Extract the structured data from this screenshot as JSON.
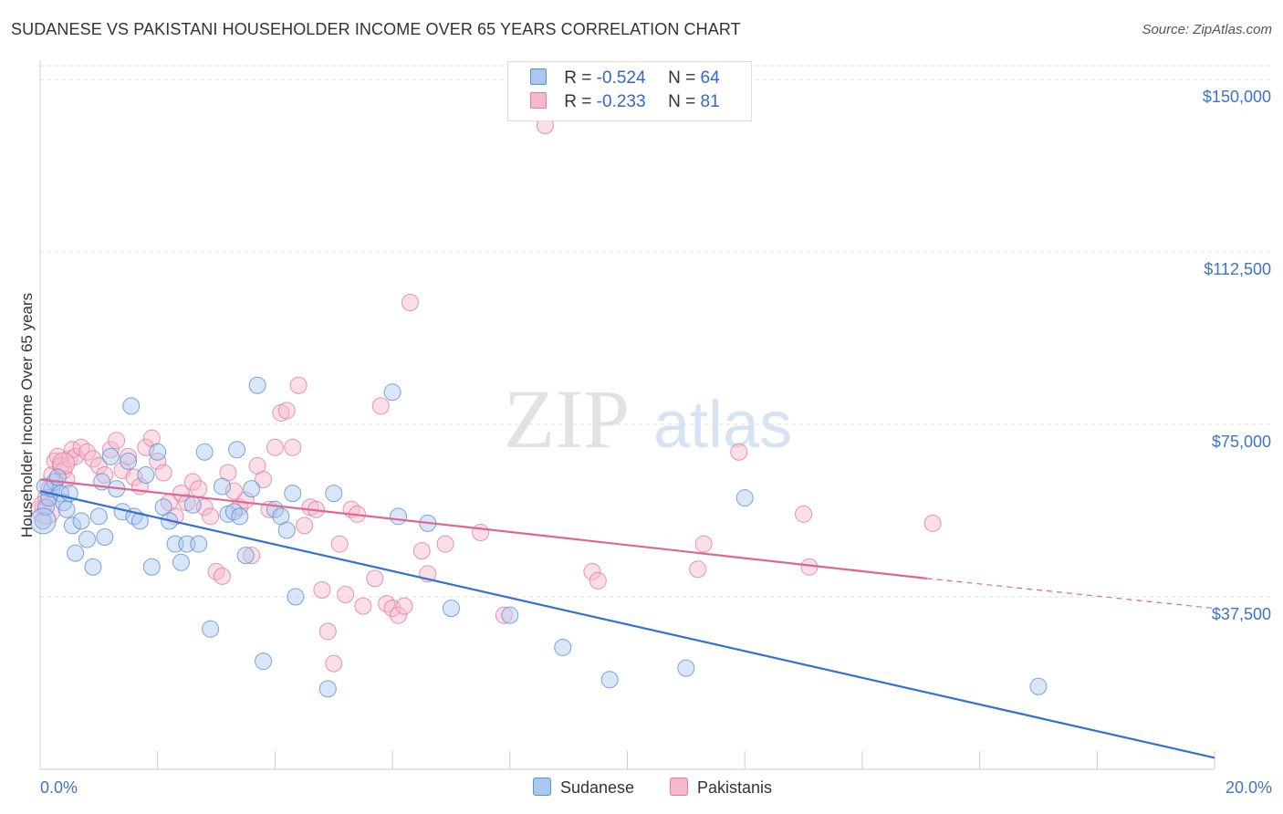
{
  "header": {
    "title": "SUDANESE VS PAKISTANI HOUSEHOLDER INCOME OVER 65 YEARS CORRELATION CHART",
    "source": "Source: ZipAtlas.com"
  },
  "watermark": {
    "zip": "ZIP",
    "atlas": "atlas"
  },
  "legend": {
    "rows": [
      {
        "r_label": "R =",
        "r_value": "-0.524",
        "n_label": "N =",
        "n_value": "64"
      },
      {
        "r_label": "R =",
        "r_value": "-0.233",
        "n_label": "N =",
        "n_value": "81"
      }
    ]
  },
  "bottom_legend": {
    "series1": "Sudanese",
    "series2": "Pakistanis"
  },
  "colors": {
    "sudanese_fill": "#aac8ef",
    "sudanese_stroke": "#5b8fd6",
    "sudanese_line": "#3471d1",
    "pakistani_fill": "#f6b8cb",
    "pakistani_stroke": "#e07c9c",
    "pakistani_line": "#e06690",
    "axis_label": "#3c74c9",
    "grid": "#dddddd"
  },
  "chart_data": {
    "type": "scatter",
    "title": "SUDANESE VS PAKISTANI HOUSEHOLDER INCOME OVER 65 YEARS CORRELATION CHART",
    "xlabel": "",
    "ylabel": "Householder Income Over 65 years",
    "xlim": [
      0,
      20
    ],
    "ylim": [
      0,
      153000
    ],
    "x_tick_labels": [
      "0.0%",
      "20.0%"
    ],
    "y_ticks": [
      37500,
      75000,
      112500,
      150000
    ],
    "y_tick_labels": [
      "$37,500",
      "$75,000",
      "$112,500",
      "$150,000"
    ],
    "grid": true,
    "legend_position": "top-center",
    "series": [
      {
        "name": "Sudanese",
        "r": -0.524,
        "n": 64,
        "trend": {
          "x": [
            0,
            20
          ],
          "y": [
            60500,
            2500
          ]
        },
        "points": [
          [
            0.05,
            54000
          ],
          [
            0.1,
            57000
          ],
          [
            0.15,
            59000
          ],
          [
            0.2,
            61000
          ],
          [
            0.25,
            62500
          ],
          [
            0.3,
            63500
          ],
          [
            0.35,
            60000
          ],
          [
            0.4,
            58000
          ],
          [
            0.45,
            56500
          ],
          [
            0.5,
            60000
          ],
          [
            0.55,
            53000
          ],
          [
            0.6,
            47000
          ],
          [
            0.7,
            54000
          ],
          [
            0.8,
            50000
          ],
          [
            0.9,
            44000
          ],
          [
            1.0,
            55000
          ],
          [
            1.1,
            50500
          ],
          [
            1.2,
            68000
          ],
          [
            1.3,
            61000
          ],
          [
            1.4,
            56000
          ],
          [
            1.5,
            67000
          ],
          [
            1.55,
            79000
          ],
          [
            1.6,
            55000
          ],
          [
            1.7,
            54000
          ],
          [
            1.8,
            64000
          ],
          [
            1.9,
            44000
          ],
          [
            2.0,
            69000
          ],
          [
            2.1,
            57000
          ],
          [
            2.2,
            54000
          ],
          [
            2.3,
            49000
          ],
          [
            2.4,
            45000
          ],
          [
            2.5,
            49000
          ],
          [
            2.6,
            57500
          ],
          [
            2.7,
            49000
          ],
          [
            2.8,
            69000
          ],
          [
            2.9,
            30500
          ],
          [
            3.1,
            61500
          ],
          [
            3.2,
            55500
          ],
          [
            3.3,
            56000
          ],
          [
            3.35,
            69500
          ],
          [
            3.4,
            55000
          ],
          [
            3.5,
            46500
          ],
          [
            3.6,
            61000
          ],
          [
            3.7,
            83500
          ],
          [
            3.8,
            23500
          ],
          [
            4.0,
            56500
          ],
          [
            4.1,
            55000
          ],
          [
            4.2,
            52000
          ],
          [
            4.3,
            60000
          ],
          [
            4.35,
            37500
          ],
          [
            4.9,
            17500
          ],
          [
            5.0,
            60000
          ],
          [
            6.0,
            82000
          ],
          [
            6.1,
            55000
          ],
          [
            6.6,
            53500
          ],
          [
            7.0,
            35000
          ],
          [
            8.0,
            33500
          ],
          [
            8.9,
            26500
          ],
          [
            9.7,
            19500
          ],
          [
            11.0,
            22000
          ],
          [
            12.0,
            59000
          ],
          [
            17.0,
            18000
          ],
          [
            0.08,
            61500
          ],
          [
            1.05,
            62500
          ]
        ]
      },
      {
        "name": "Pakistanis",
        "r": -0.233,
        "n": 81,
        "trend": {
          "x": [
            0,
            15.1
          ],
          "y": [
            63000,
            41500
          ]
        },
        "trend_dashed": {
          "x": [
            15.1,
            20
          ],
          "y": [
            41500,
            35000
          ]
        },
        "points": [
          [
            0.05,
            57000
          ],
          [
            0.1,
            59000
          ],
          [
            0.15,
            61000
          ],
          [
            0.2,
            64000
          ],
          [
            0.25,
            67000
          ],
          [
            0.3,
            68000
          ],
          [
            0.35,
            66000
          ],
          [
            0.4,
            65000
          ],
          [
            0.45,
            63000
          ],
          [
            0.5,
            67500
          ],
          [
            0.55,
            69500
          ],
          [
            0.6,
            68000
          ],
          [
            0.7,
            70000
          ],
          [
            0.8,
            69000
          ],
          [
            0.9,
            67500
          ],
          [
            1.0,
            66000
          ],
          [
            1.1,
            64000
          ],
          [
            1.2,
            69500
          ],
          [
            1.3,
            71500
          ],
          [
            1.4,
            65000
          ],
          [
            1.5,
            68000
          ],
          [
            1.6,
            63500
          ],
          [
            1.7,
            61500
          ],
          [
            1.8,
            70000
          ],
          [
            1.9,
            72000
          ],
          [
            2.0,
            67000
          ],
          [
            2.1,
            64500
          ],
          [
            2.2,
            58000
          ],
          [
            2.3,
            55000
          ],
          [
            2.4,
            60000
          ],
          [
            2.5,
            58000
          ],
          [
            2.6,
            62500
          ],
          [
            2.7,
            61000
          ],
          [
            2.8,
            57000
          ],
          [
            2.9,
            55000
          ],
          [
            3.0,
            43000
          ],
          [
            3.1,
            42000
          ],
          [
            3.2,
            64500
          ],
          [
            3.3,
            60500
          ],
          [
            3.4,
            57000
          ],
          [
            3.5,
            58500
          ],
          [
            3.6,
            46500
          ],
          [
            3.7,
            66000
          ],
          [
            3.8,
            63000
          ],
          [
            3.9,
            56500
          ],
          [
            4.0,
            70000
          ],
          [
            4.1,
            77500
          ],
          [
            4.2,
            78000
          ],
          [
            4.3,
            70000
          ],
          [
            4.4,
            83500
          ],
          [
            4.5,
            53000
          ],
          [
            4.6,
            57000
          ],
          [
            4.7,
            56500
          ],
          [
            4.8,
            39000
          ],
          [
            4.9,
            30000
          ],
          [
            5.0,
            23000
          ],
          [
            5.1,
            49000
          ],
          [
            5.2,
            38000
          ],
          [
            5.3,
            56500
          ],
          [
            5.4,
            55500
          ],
          [
            5.5,
            35500
          ],
          [
            5.7,
            41500
          ],
          [
            5.8,
            79000
          ],
          [
            5.9,
            36000
          ],
          [
            6.0,
            35000
          ],
          [
            6.1,
            33500
          ],
          [
            6.2,
            35500
          ],
          [
            6.3,
            101500
          ],
          [
            6.5,
            47500
          ],
          [
            6.6,
            42500
          ],
          [
            6.9,
            49000
          ],
          [
            7.5,
            51500
          ],
          [
            7.9,
            33500
          ],
          [
            9.4,
            43000
          ],
          [
            9.5,
            41000
          ],
          [
            11.2,
            43500
          ],
          [
            11.3,
            49000
          ],
          [
            11.9,
            69000
          ],
          [
            13.0,
            55500
          ],
          [
            13.1,
            44000
          ],
          [
            15.2,
            53500
          ]
        ]
      }
    ],
    "extra_points": {
      "Pakistanis": [
        [
          8.6,
          140000
        ]
      ]
    }
  }
}
